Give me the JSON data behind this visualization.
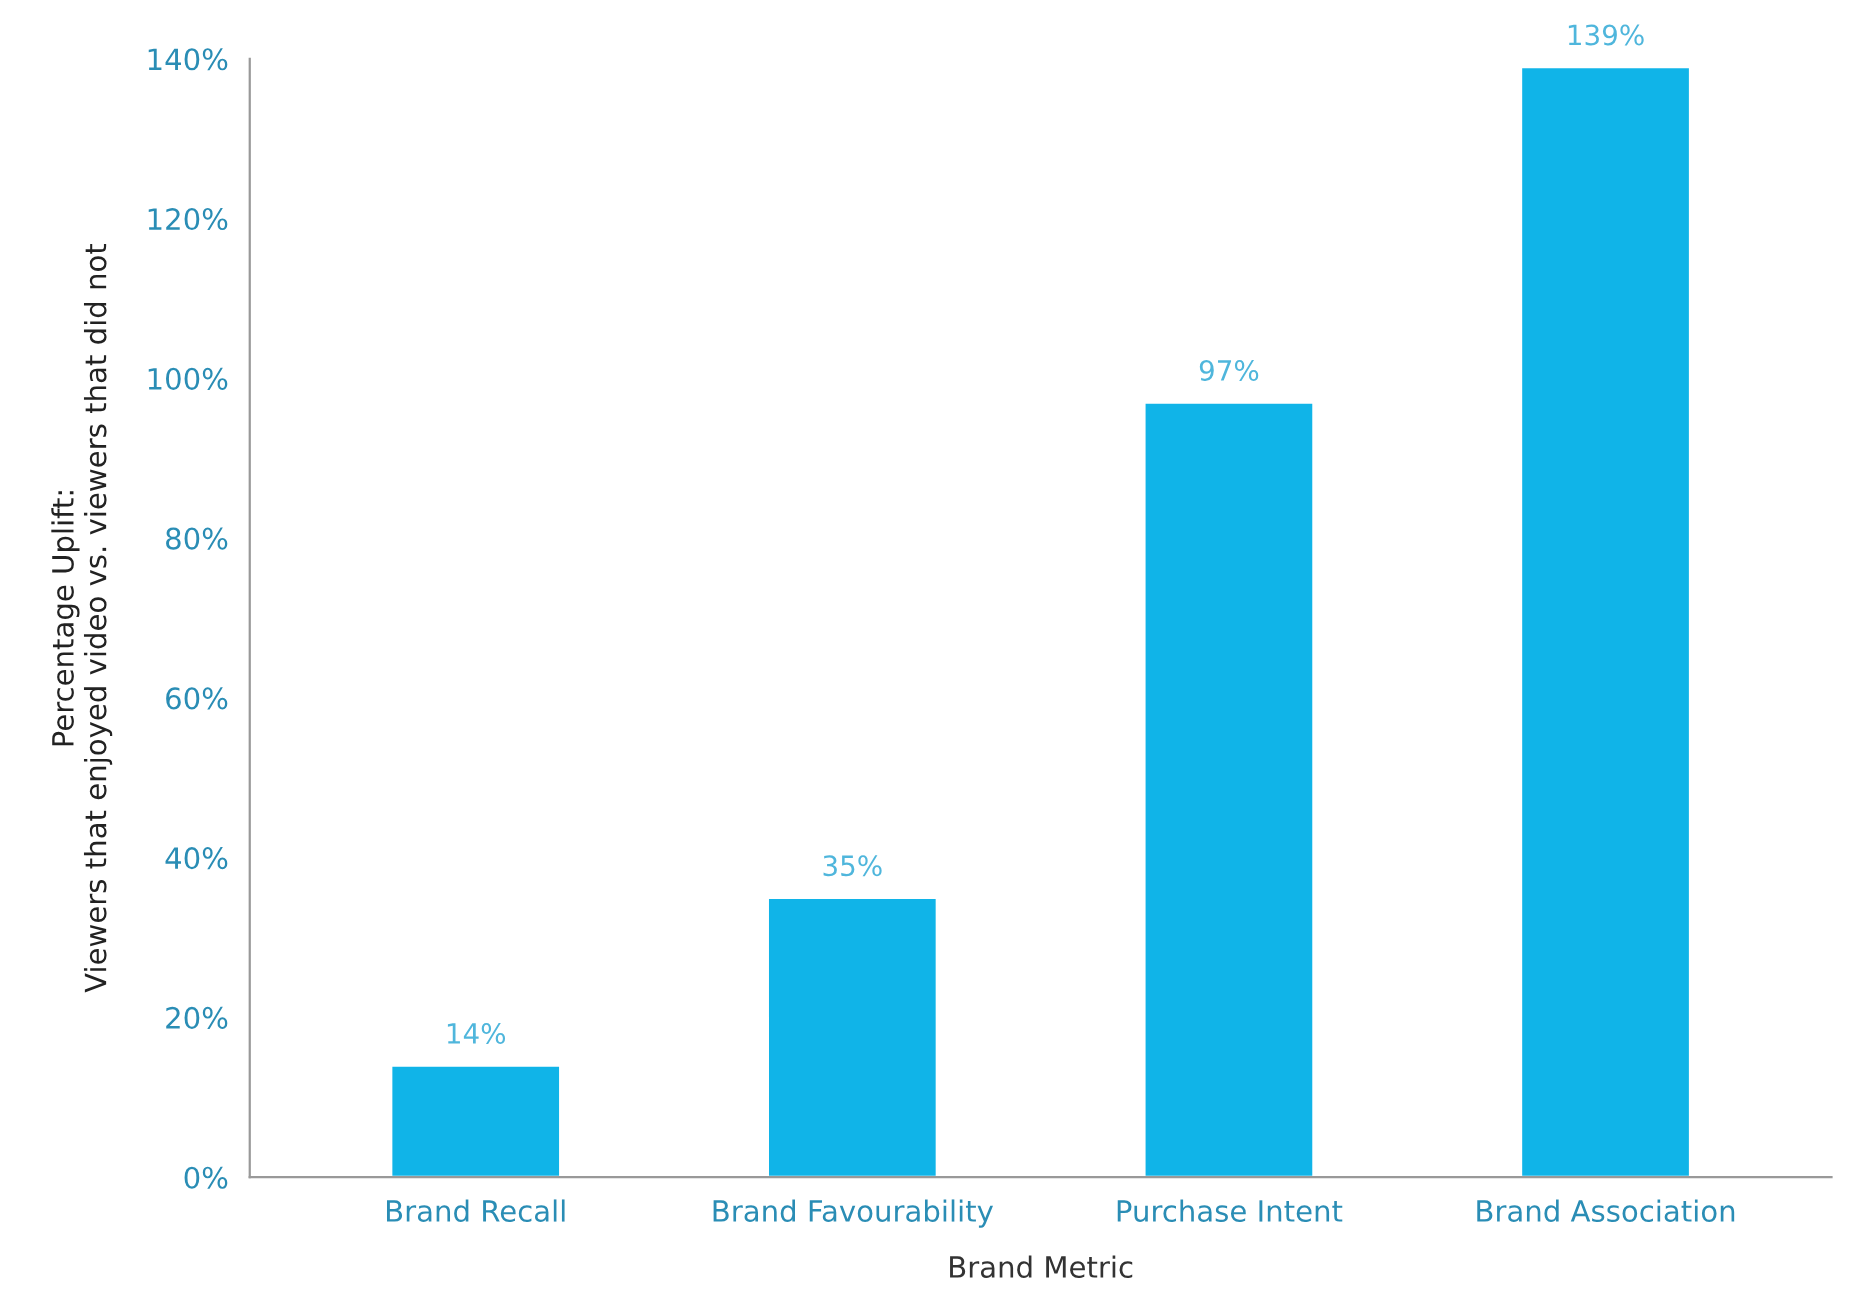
{
  "chart_data": {
    "type": "bar",
    "xlabel": "Brand Metric",
    "ylabel": "Percentage Uplift:\nViewers that enjoyed video vs. viewers that did not",
    "categories": [
      "Brand Recall",
      "Brand Favourability",
      "Purchase Intent",
      "Brand Association"
    ],
    "values": [
      14,
      35,
      97,
      139
    ],
    "color": "#10b4e8",
    "value_labels": [
      "14%",
      "35%",
      "97%",
      "139%"
    ],
    "ylim": [
      0,
      140
    ],
    "yticks": [
      {
        "value": 0,
        "label": "0%"
      },
      {
        "value": 20,
        "label": "20%"
      },
      {
        "value": 40,
        "label": "40%"
      },
      {
        "value": 60,
        "label": "60%"
      },
      {
        "value": 80,
        "label": "80%"
      },
      {
        "value": 100,
        "label": "100%"
      },
      {
        "value": 120,
        "label": "120%"
      },
      {
        "value": 140,
        "label": "140%"
      }
    ],
    "grid": false,
    "legend": false
  }
}
